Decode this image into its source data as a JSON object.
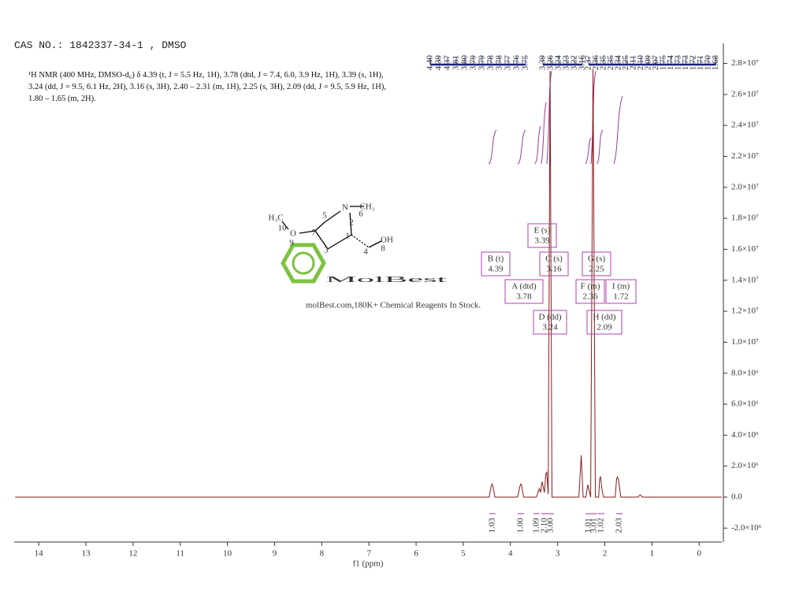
{
  "chart_data": {
    "type": "line",
    "title": "CAS NO.: 1842337-34-1 , DMSO",
    "subtitle": "¹H NMR (400 MHz, DMSO-d₆) δ 4.39 (t, J = 5.5 Hz, 1H), 3.78 (dtd, J = 7.4, 6.0, 3.9 Hz, 1H), 3.39 (s, 1H), 3.24 (dd, J = 9.5, 6.1 Hz, 2H), 3.16 (s, 3H), 2.40 – 2.31 (m, 1H), 2.25 (s, 3H), 2.09 (dd, J = 9.5, 5.9 Hz, 1H), 1.80 – 1.65 (m, 2H).",
    "x_label": "f1 (ppm)",
    "xlim": [
      14.52,
      -0.48
    ],
    "xticks": [
      14,
      13,
      12,
      11,
      10,
      9,
      8,
      7,
      6,
      5,
      4,
      3,
      2,
      1,
      0
    ],
    "ylim": [
      -2900000,
      29300000
    ],
    "yticks": [
      {
        "value": -2000000,
        "label": "-2.0×10⁶"
      },
      {
        "value": 0,
        "label": "0.0"
      },
      {
        "value": 2000000,
        "label": "2.0×10⁶"
      },
      {
        "value": 4000000,
        "label": "4.0×10⁶"
      },
      {
        "value": 6000000,
        "label": "6.0×10⁶"
      },
      {
        "value": 8000000,
        "label": "8.0×10⁶"
      },
      {
        "value": 10000000,
        "label": "1.0×10⁷"
      },
      {
        "value": 12000000,
        "label": "1.2×10⁷"
      },
      {
        "value": 14000000,
        "label": "1.4×10⁷"
      },
      {
        "value": 16000000,
        "label": "1.6×10⁷"
      },
      {
        "value": 18000000,
        "label": "1.8×10⁷"
      },
      {
        "value": 20000000,
        "label": "2.0×10⁷"
      },
      {
        "value": 22000000,
        "label": "2.2×10⁷"
      },
      {
        "value": 24000000,
        "label": "2.4×10⁷"
      },
      {
        "value": 26000000,
        "label": "2.6×10⁷"
      },
      {
        "value": 28000000,
        "label": "2.8×10⁷"
      }
    ],
    "series": [
      {
        "color": "#8b1a1a",
        "x": [
          14.5,
          4.45,
          4.41,
          4.39,
          4.37,
          4.33,
          3.85,
          3.8,
          3.78,
          3.76,
          3.72,
          3.45,
          3.39,
          3.36,
          3.33,
          3.28,
          3.25,
          3.23,
          3.2,
          3.16,
          3.12,
          2.55,
          2.5,
          2.46,
          2.4,
          2.36,
          2.3,
          2.25,
          2.2,
          2.13,
          2.11,
          2.09,
          2.06,
          2.03,
          1.78,
          1.75,
          1.73,
          1.71,
          1.66,
          1.3,
          1.25,
          1.2,
          -0.48
        ],
        "values": [
          0,
          0,
          700000,
          850000,
          700000,
          0,
          0,
          700000,
          850000,
          700000,
          0,
          0,
          550000,
          300000,
          1000000,
          300000,
          1500000,
          1600000,
          200000,
          27500000,
          0,
          0,
          2700000,
          0,
          0,
          800000,
          0,
          27600000,
          0,
          0,
          1200000,
          1300000,
          500000,
          0,
          0,
          1200000,
          1300000,
          1100000,
          0,
          0,
          150000,
          0,
          0
        ]
      }
    ],
    "peak_labels": [
      "4.40",
      "4.39",
      "4.37",
      "3.81",
      "3.80",
      "3.79",
      "3.79",
      "3.78",
      "3.78",
      "3.77",
      "3.76",
      "3.75",
      "3.39",
      "3.26",
      "3.24",
      "3.23",
      "3.22",
      "3.16",
      "2.37",
      "2.36",
      "2.35",
      "2.35",
      "2.34",
      "2.25",
      "2.11",
      "2.10",
      "2.09",
      "2.07",
      "1.75",
      "1.74",
      "1.73",
      "1.73",
      "1.72",
      "1.71",
      "1.70",
      "1.68"
    ],
    "multiplets": [
      {
        "label": "B (t)",
        "shift": "4.39"
      },
      {
        "label": "A (dtd)",
        "shift": "3.78"
      },
      {
        "label": "E (s)",
        "shift": "3.39"
      },
      {
        "label": "C (s)",
        "shift": "3.16"
      },
      {
        "label": "D (dd)",
        "shift": "3.24"
      },
      {
        "label": "G (s)",
        "shift": "2.25"
      },
      {
        "label": "F (m)",
        "shift": "2.36"
      },
      {
        "label": "I (m)",
        "shift": "1.72"
      },
      {
        "label": "H (dd)",
        "shift": "2.09"
      }
    ],
    "integrals": [
      "1.03",
      "1.00",
      "1.09",
      "2.10",
      "3.00",
      "1.01",
      "3.01",
      "1.02",
      "2.03"
    ],
    "structure_labels": [
      "H₃C",
      "O",
      "N",
      "CH₃",
      "OH",
      "10",
      "9",
      "7",
      "5",
      "6",
      "2",
      "1",
      "3",
      "4",
      "8"
    ],
    "watermark": "MolBest",
    "watermark_note": "molBest.com,180K+ Chemical Reagents In Stock."
  }
}
